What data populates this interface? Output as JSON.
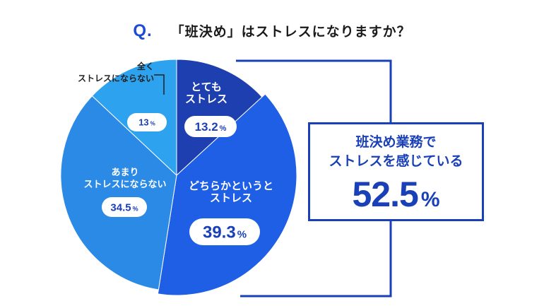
{
  "title": {
    "q_mark": "Q.",
    "question": "「班決め」はストレスになりますか？"
  },
  "colors": {
    "dark": "#1e3fb0",
    "mid": "#1f5fe6",
    "light": "#2b8ae6",
    "lighter": "#2da2ee",
    "text_blue": "#1a40b8"
  },
  "chart_data": {
    "type": "pie",
    "title": "「班決め」はストレスになりますか？",
    "slices": [
      {
        "label_lines": [
          "とても",
          "ストレス"
        ],
        "value": 13.2,
        "value_text": "13.2",
        "color": "#1e3fb0"
      },
      {
        "label_lines": [
          "どちらかというと",
          "ストレス"
        ],
        "value": 39.3,
        "value_text": "39.3",
        "color": "#1f5fe6"
      },
      {
        "label_lines": [
          "あまり",
          "ストレスにならない"
        ],
        "value": 34.5,
        "value_text": "34.5",
        "color": "#2b8ae6"
      },
      {
        "label_lines": [
          "全く",
          "ストレスにならない"
        ],
        "value": 13,
        "value_text": "13",
        "color": "#2da2ee"
      }
    ],
    "percent_sign": "%",
    "summary": {
      "lines": [
        "班決め業務で",
        "ストレスを感じている"
      ],
      "value_text": "52.5",
      "percent_sign": "%"
    }
  }
}
